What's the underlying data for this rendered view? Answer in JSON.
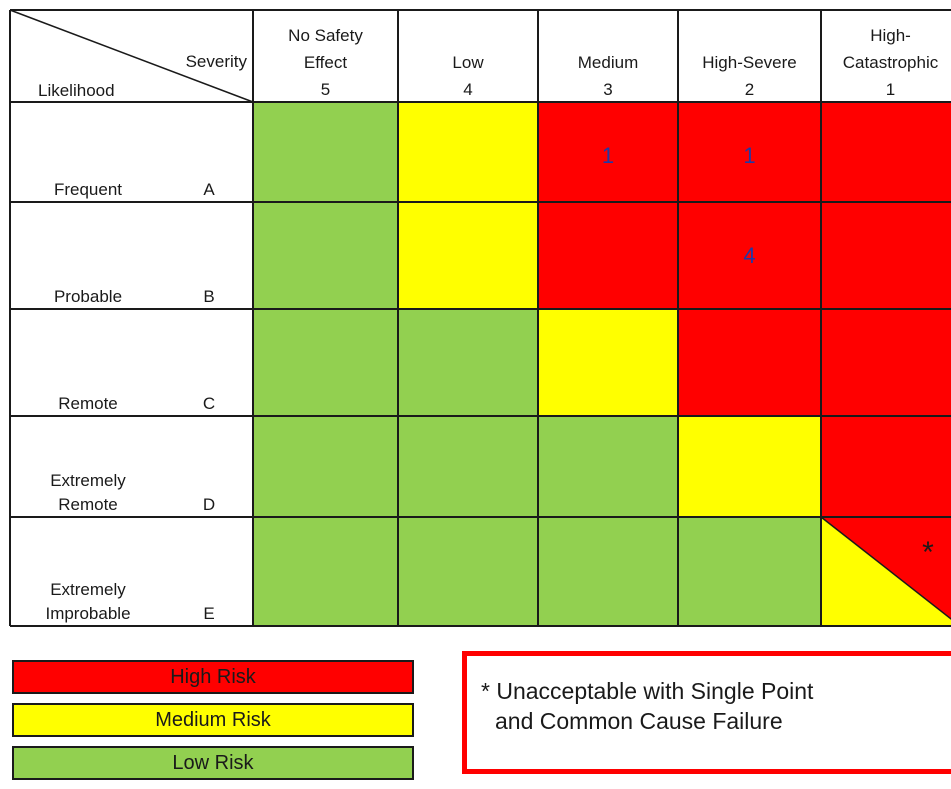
{
  "corner": {
    "severity_label": "Severity",
    "likelihood_label": "Likelihood"
  },
  "severity_columns": [
    {
      "line1": "No Safety",
      "line2": "Effect",
      "num": "5"
    },
    {
      "line1": "",
      "line2": "Low",
      "num": "4"
    },
    {
      "line1": "",
      "line2": "Medium",
      "num": "3"
    },
    {
      "line1": "",
      "line2": "High-Severe",
      "num": "2"
    },
    {
      "line1": "High-",
      "line2": "Catastrophic",
      "num": "1"
    }
  ],
  "likelihood_rows": [
    {
      "line1": "",
      "line2": "Frequent",
      "letter": "A"
    },
    {
      "line1": "",
      "line2": "Probable",
      "letter": "B"
    },
    {
      "line1": "",
      "line2": "Remote",
      "letter": "C"
    },
    {
      "line1": "Extremely",
      "line2": "Remote",
      "letter": "D"
    },
    {
      "line1": "Extremely",
      "line2": "Improbable",
      "letter": "E"
    }
  ],
  "risk_levels": [
    "low",
    "medium",
    "high"
  ],
  "cells": [
    [
      "low",
      "medium",
      "high",
      "high",
      "high"
    ],
    [
      "low",
      "medium",
      "high",
      "high",
      "high"
    ],
    [
      "low",
      "low",
      "medium",
      "high",
      "high"
    ],
    [
      "low",
      "low",
      "low",
      "medium",
      "high"
    ],
    [
      "low",
      "low",
      "low",
      "low",
      "split"
    ]
  ],
  "cell_counts": [
    {
      "row": 0,
      "col": 2,
      "count": "1"
    },
    {
      "row": 0,
      "col": 3,
      "count": "1"
    },
    {
      "row": 1,
      "col": 3,
      "count": "4"
    }
  ],
  "split_cell_marker": "*",
  "colors": {
    "high": "#ff0000",
    "medium": "#ffff00",
    "low": "#92d050",
    "count_text": "#1f3aa6"
  },
  "legend": {
    "high": "High Risk",
    "medium": "Medium Risk",
    "low": "Low Risk"
  },
  "note": {
    "line1": "* Unacceptable with Single Point",
    "line2": "and Common Cause Failure"
  }
}
